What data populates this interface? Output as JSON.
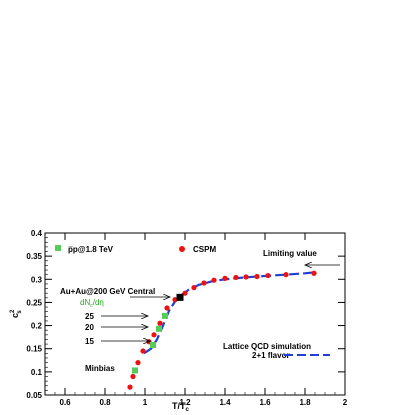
{
  "chart_data": {
    "type": "scatter",
    "xlabel": "T/T",
    "xlabel_sub": "c",
    "ylabel": "c",
    "ylabel_sup": "2",
    "ylabel_sub": "s",
    "xlim": [
      0.5,
      2.0
    ],
    "ylim": [
      0.05,
      0.4
    ],
    "xticks": [
      0.6,
      0.8,
      1.0,
      1.2,
      1.4,
      1.6,
      1.8,
      2.0
    ],
    "xtick_labels": [
      "0.6",
      "0.8",
      "1",
      "1.2",
      "1.4",
      "1.6",
      "1.8",
      "2"
    ],
    "yticks": [
      0.05,
      0.1,
      0.15,
      0.2,
      0.25,
      0.3,
      0.35,
      0.4
    ],
    "ytick_labels": [
      "0.05",
      "0.1",
      "0.15",
      "0.2",
      "0.25",
      "0.3",
      "0.35",
      "0.4"
    ],
    "legend": {
      "pp_label": "p̅p@1.8 TeV",
      "cspm_label": "CSPM",
      "lattice_label_1": "Lattice QCD simulation",
      "lattice_label_2": "2+1 flavor"
    },
    "series": [
      {
        "name": "p̅p@1.8 TeV",
        "marker": "square",
        "color": "#55cc55",
        "points": [
          {
            "x": 0.95,
            "y": 0.103
          },
          {
            "x": 1.04,
            "y": 0.158
          },
          {
            "x": 1.07,
            "y": 0.193
          },
          {
            "x": 1.1,
            "y": 0.221
          }
        ]
      },
      {
        "name": "CSPM",
        "marker": "circle",
        "color": "#ee1111",
        "points": [
          {
            "x": 0.925,
            "y": 0.067
          },
          {
            "x": 0.94,
            "y": 0.09
          },
          {
            "x": 0.965,
            "y": 0.12
          },
          {
            "x": 0.99,
            "y": 0.145
          },
          {
            "x": 1.02,
            "y": 0.165
          },
          {
            "x": 1.045,
            "y": 0.18
          },
          {
            "x": 1.075,
            "y": 0.205
          },
          {
            "x": 1.11,
            "y": 0.238
          },
          {
            "x": 1.15,
            "y": 0.256
          },
          {
            "x": 1.2,
            "y": 0.27
          },
          {
            "x": 1.245,
            "y": 0.282
          },
          {
            "x": 1.295,
            "y": 0.292
          },
          {
            "x": 1.345,
            "y": 0.298
          },
          {
            "x": 1.4,
            "y": 0.302
          },
          {
            "x": 1.455,
            "y": 0.304
          },
          {
            "x": 1.505,
            "y": 0.305
          },
          {
            "x": 1.56,
            "y": 0.306
          },
          {
            "x": 1.615,
            "y": 0.308
          },
          {
            "x": 1.705,
            "y": 0.31
          },
          {
            "x": 1.845,
            "y": 0.313
          }
        ]
      },
      {
        "name": "Au+Au@200 GeV Central",
        "marker": "square",
        "color": "#000000",
        "points": [
          {
            "x": 1.175,
            "y": 0.261
          }
        ]
      },
      {
        "name": "Lattice QCD simulation 2+1 flavor",
        "marker": "dashed-line",
        "color": "#1f3fd6",
        "points": [
          {
            "x": 0.995,
            "y": 0.14
          },
          {
            "x": 1.03,
            "y": 0.15
          },
          {
            "x": 1.06,
            "y": 0.17
          },
          {
            "x": 1.09,
            "y": 0.2
          },
          {
            "x": 1.12,
            "y": 0.232
          },
          {
            "x": 1.15,
            "y": 0.252
          },
          {
            "x": 1.18,
            "y": 0.265
          },
          {
            "x": 1.22,
            "y": 0.278
          },
          {
            "x": 1.27,
            "y": 0.288
          },
          {
            "x": 1.33,
            "y": 0.295
          },
          {
            "x": 1.4,
            "y": 0.3
          },
          {
            "x": 1.5,
            "y": 0.304
          },
          {
            "x": 1.6,
            "y": 0.307
          },
          {
            "x": 1.7,
            "y": 0.31
          },
          {
            "x": 1.8,
            "y": 0.313
          },
          {
            "x": 1.85,
            "y": 0.315
          }
        ]
      }
    ],
    "annotations": {
      "limiting_value": "Limiting value",
      "au_au": "Au+Au@200 GeV Central",
      "dnc": "dN",
      "dnc_sub": "c",
      "dnc_tail": "/dη",
      "n25": "25",
      "n20": "20",
      "n15": "15",
      "minbias": "Minbias"
    }
  }
}
